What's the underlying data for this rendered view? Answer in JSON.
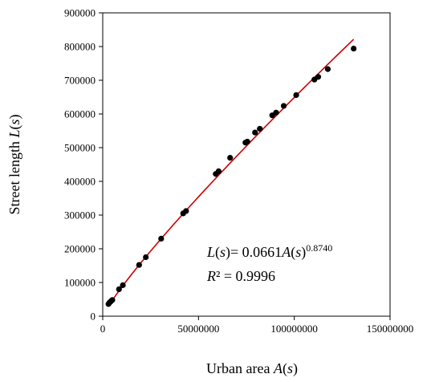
{
  "chart_data": {
    "type": "scatter",
    "xlabel_parts": [
      "Urban area ",
      "A",
      "(",
      "s",
      ")"
    ],
    "ylabel_parts": [
      "Street length ",
      "L",
      "(",
      "s",
      ")"
    ],
    "xlim": [
      0,
      150000000
    ],
    "ylim": [
      0,
      900000
    ],
    "x_ticks": [
      "0",
      "50000000",
      "100000000",
      "150000000"
    ],
    "y_ticks": [
      "0",
      "100000",
      "200000",
      "300000",
      "400000",
      "500000",
      "600000",
      "700000",
      "800000",
      "900000"
    ],
    "grid": false,
    "colors": {
      "points": "#000000",
      "trendline": "#cc0000"
    },
    "equation": {
      "l": "L",
      "s1": "(",
      "s": "s",
      "s2": ")= 0.0661",
      "a": "A",
      "s3": "(",
      "s4": "s",
      "s5": ")",
      "exponent": "0.8740",
      "r2_label": "R",
      "r2_rest": "² = 0.9996"
    },
    "trendline": {
      "type": "power",
      "coefficient": 0.0661,
      "exponent": 0.874,
      "x_range": [
        3000000,
        131000000
      ]
    },
    "points": [
      {
        "x": 3000000,
        "y": 36000
      },
      {
        "x": 3500000,
        "y": 40000
      },
      {
        "x": 4200000,
        "y": 44000
      },
      {
        "x": 5000000,
        "y": 48000
      },
      {
        "x": 8500000,
        "y": 80000
      },
      {
        "x": 10500000,
        "y": 92000
      },
      {
        "x": 19000000,
        "y": 152000
      },
      {
        "x": 22500000,
        "y": 175000
      },
      {
        "x": 30500000,
        "y": 230000
      },
      {
        "x": 42000000,
        "y": 305000
      },
      {
        "x": 43500000,
        "y": 312000
      },
      {
        "x": 59000000,
        "y": 422000
      },
      {
        "x": 60500000,
        "y": 430000
      },
      {
        "x": 66500000,
        "y": 470000
      },
      {
        "x": 74500000,
        "y": 515000
      },
      {
        "x": 75500000,
        "y": 518000
      },
      {
        "x": 79500000,
        "y": 545000
      },
      {
        "x": 82000000,
        "y": 556000
      },
      {
        "x": 88500000,
        "y": 596000
      },
      {
        "x": 90500000,
        "y": 604000
      },
      {
        "x": 94500000,
        "y": 624000
      },
      {
        "x": 101000000,
        "y": 656000
      },
      {
        "x": 110500000,
        "y": 702000
      },
      {
        "x": 112500000,
        "y": 710000
      },
      {
        "x": 117500000,
        "y": 733000
      },
      {
        "x": 131000000,
        "y": 794000
      }
    ]
  }
}
